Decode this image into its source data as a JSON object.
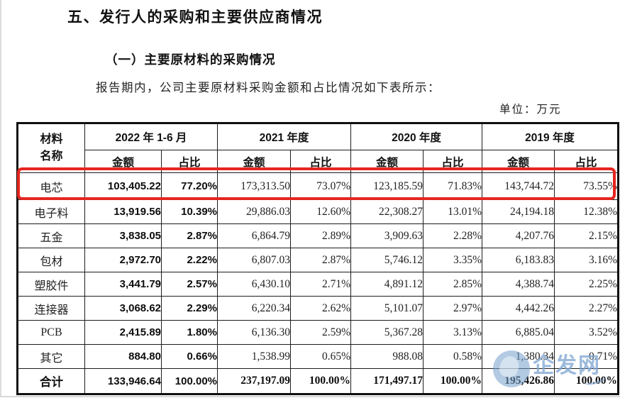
{
  "page": {
    "section_title": "五、发行人的采购和主要供应商情况",
    "subsection_title": "（一）主要原材料的采购情况",
    "intro_text": "报告期内，公司主要原材料采购金额和占比情况如下表所示：",
    "unit_label": "单位：万元"
  },
  "table": {
    "material_header_line1": "材料",
    "material_header_line2": "名称",
    "periods": [
      "2022 年 1-6 月",
      "2021 年度",
      "2020 年度",
      "2019 年度"
    ],
    "sub_headers": {
      "amount": "金额",
      "ratio": "占比"
    },
    "rows": [
      {
        "name": "电芯",
        "highlight": true,
        "total": false,
        "values": [
          "103,405.22",
          "77.20%",
          "173,313.50",
          "73.07%",
          "123,185.59",
          "71.83%",
          "143,744.72",
          "73.55%"
        ]
      },
      {
        "name": "电子料",
        "highlight": false,
        "total": false,
        "values": [
          "13,919.56",
          "10.39%",
          "29,886.03",
          "12.60%",
          "22,308.27",
          "13.01%",
          "24,194.18",
          "12.38%"
        ]
      },
      {
        "name": "五金",
        "highlight": false,
        "total": false,
        "values": [
          "3,838.05",
          "2.87%",
          "6,864.79",
          "2.89%",
          "3,909.63",
          "2.28%",
          "4,207.76",
          "2.15%"
        ]
      },
      {
        "name": "包材",
        "highlight": false,
        "total": false,
        "values": [
          "2,972.70",
          "2.22%",
          "6,807.03",
          "2.87%",
          "5,746.12",
          "3.35%",
          "6,183.83",
          "3.16%"
        ]
      },
      {
        "name": "塑胶件",
        "highlight": false,
        "total": false,
        "values": [
          "3,441.79",
          "2.57%",
          "6,430.10",
          "2.71%",
          "4,891.12",
          "2.85%",
          "4,388.74",
          "2.25%"
        ]
      },
      {
        "name": "连接器",
        "highlight": false,
        "total": false,
        "values": [
          "3,068.62",
          "2.29%",
          "6,220.34",
          "2.62%",
          "5,101.07",
          "2.97%",
          "4,442.26",
          "2.27%"
        ]
      },
      {
        "name": "PCB",
        "highlight": false,
        "total": false,
        "values": [
          "2,415.89",
          "1.80%",
          "6,136.30",
          "2.59%",
          "5,367.28",
          "3.13%",
          "6,885.04",
          "3.52%"
        ]
      },
      {
        "name": "其它",
        "highlight": false,
        "total": false,
        "values": [
          "884.80",
          "0.66%",
          "1,538.99",
          "0.65%",
          "988.08",
          "0.58%",
          "1,380.34",
          "0.71%"
        ]
      },
      {
        "name": "合计",
        "highlight": false,
        "total": true,
        "values": [
          "133,946.64",
          "100.00%",
          "237,197.09",
          "100.00%",
          "171,497.17",
          "100.00%",
          "195,426.86",
          "100.00%"
        ]
      }
    ]
  },
  "colors": {
    "highlight_border": "#e5261f",
    "watermark_blue": "#80a6d2",
    "table_border": "#101010"
  },
  "watermark": {
    "text": "企发网"
  }
}
